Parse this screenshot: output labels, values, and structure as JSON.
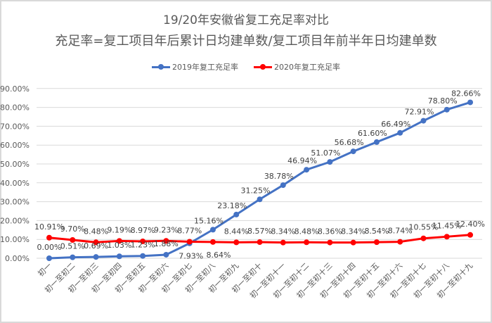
{
  "chart_data": {
    "type": "line",
    "title": "19/20年安徽省复工充足率对比",
    "subtitle": "充足率=复工项目年后累计日均建单数/复工项目年前半年日均建单数",
    "xlabel": "",
    "ylabel": "",
    "ylim": [
      0,
      0.9
    ],
    "y_ticks": [
      "0.00%",
      "10.00%",
      "20.00%",
      "30.00%",
      "40.00%",
      "50.00%",
      "60.00%",
      "70.00%",
      "80.00%",
      "90.00%"
    ],
    "grid": true,
    "legend_position": "top",
    "categories": [
      "初一",
      "初一至初二",
      "初一至初三",
      "初一至初四",
      "初一至初五",
      "初一至初六",
      "初一至初七",
      "初一至初八",
      "初一至初九",
      "初一至初十",
      "初一至初十一",
      "初一至初十二",
      "初一至初十三",
      "初一至初十四",
      "初一至初十五",
      "初一至初十六",
      "初一至初十七",
      "初一至初十八",
      "初一至初十九"
    ],
    "series": [
      {
        "name": "2019年复工充足率",
        "color": "#4472c4",
        "values": [
          0.0,
          0.51,
          0.69,
          1.03,
          1.23,
          1.88,
          7.93,
          15.16,
          23.18,
          31.25,
          38.78,
          46.94,
          51.07,
          56.68,
          61.6,
          66.49,
          72.91,
          78.8,
          82.66
        ],
        "labels": [
          "0.00%",
          "0.51%",
          "0.69%",
          "1.03%",
          "1.23%",
          "1.88%",
          "7.93%",
          "15.16%",
          "23.18%",
          "31.25%",
          "38.78%",
          "46.94%",
          "51.07%",
          "56.68%",
          "61.60%",
          "66.49%",
          "72.91%",
          "78.80%",
          "82.66%"
        ]
      },
      {
        "name": "2020年复工充足率",
        "color": "#ff0000",
        "values": [
          10.91,
          9.7,
          8.48,
          9.19,
          8.97,
          9.23,
          8.77,
          8.64,
          8.44,
          8.57,
          8.34,
          8.48,
          8.36,
          8.34,
          8.54,
          8.74,
          10.55,
          11.45,
          12.4
        ],
        "labels": [
          "10.91%",
          "9.70%",
          "8.48%",
          "9.19%",
          "8.97%",
          "9.23%",
          "8.77%",
          "8.64%",
          "8.44%",
          "8.57%",
          "8.34%",
          "8.48%",
          "8.36%",
          "8.34%",
          "8.54%",
          "8.74%",
          "10.55%",
          "11.45%",
          "12.40%"
        ]
      }
    ]
  }
}
